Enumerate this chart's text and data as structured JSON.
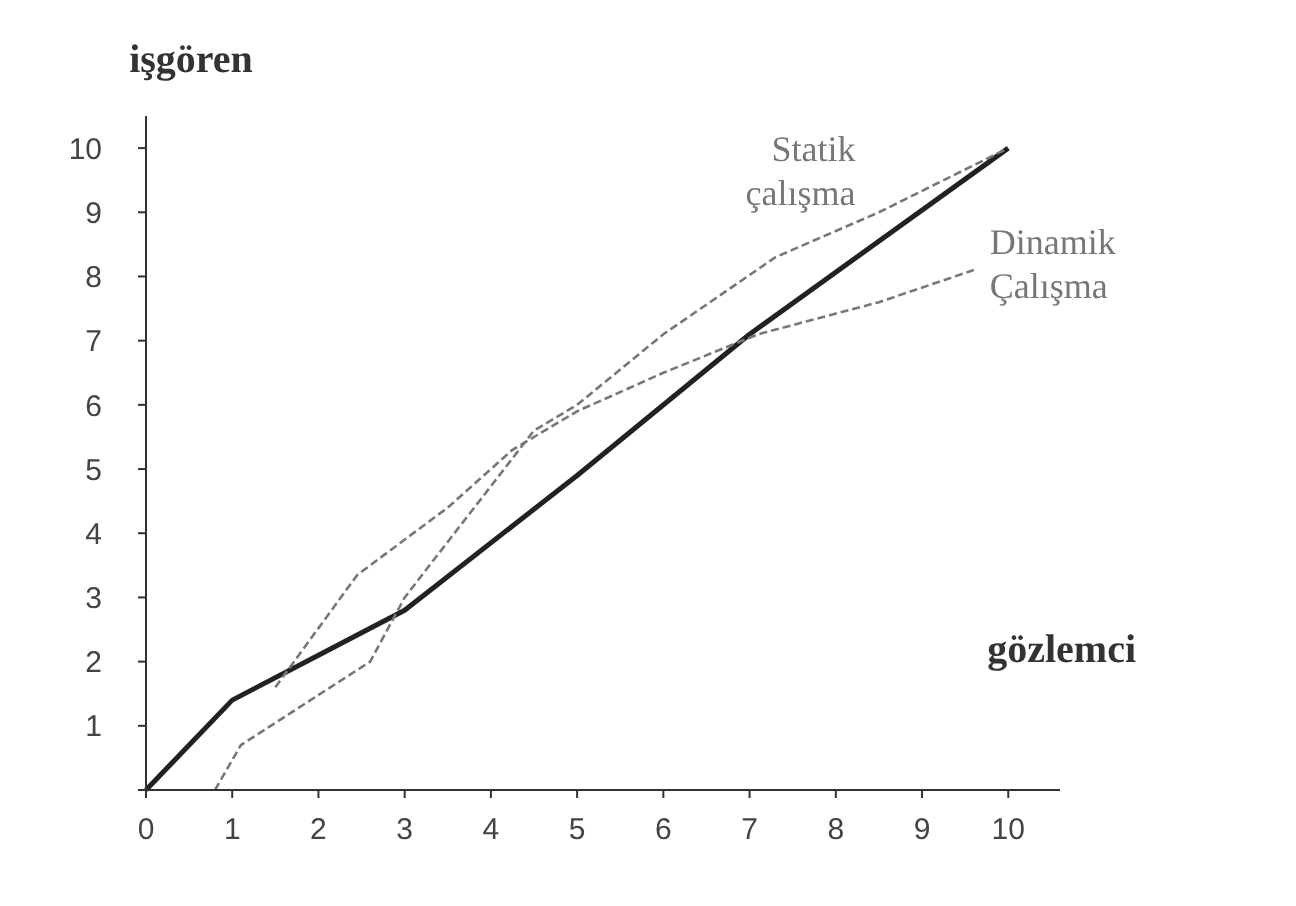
{
  "chart_data": {
    "type": "line",
    "xlabel": "gözlemci",
    "ylabel": "işgören",
    "xlim": [
      0,
      10.6
    ],
    "ylim": [
      0,
      10.5
    ],
    "xticks": [
      0,
      1,
      2,
      3,
      4,
      5,
      6,
      7,
      8,
      9,
      10
    ],
    "yticks": [
      {
        "value": 0,
        "label": null
      },
      1,
      2,
      3,
      4,
      5,
      6,
      7,
      8,
      9,
      10
    ],
    "grid": false,
    "legend": false,
    "marker": "none",
    "series": [
      {
        "color": "#222222",
        "line_style": "solid",
        "x": [
          0,
          1,
          2,
          3,
          5,
          7,
          10
        ],
        "values": [
          0,
          1.4,
          2.1,
          2.8,
          4.9,
          7.1,
          10
        ]
      },
      {
        "name": "Statik çalışma",
        "color": "#777777",
        "line_style": "dashed",
        "x": [
          0.8,
          1.1,
          2.6,
          3,
          4.5,
          5,
          6,
          7.3,
          8.5,
          10
        ],
        "values": [
          0,
          0.7,
          2,
          3,
          5.6,
          6,
          7.1,
          8.3,
          9,
          10
        ]
      },
      {
        "name": "Dinamik Çalışma",
        "color": "#777777",
        "line_style": "dashed",
        "x": [
          1.5,
          2.45,
          3.5,
          4.25,
          5,
          6,
          7.1,
          8.5,
          9.6
        ],
        "values": [
          1.6,
          3.35,
          4.4,
          5.3,
          5.9,
          6.5,
          7.1,
          7.6,
          8.1
        ]
      }
    ]
  }
}
